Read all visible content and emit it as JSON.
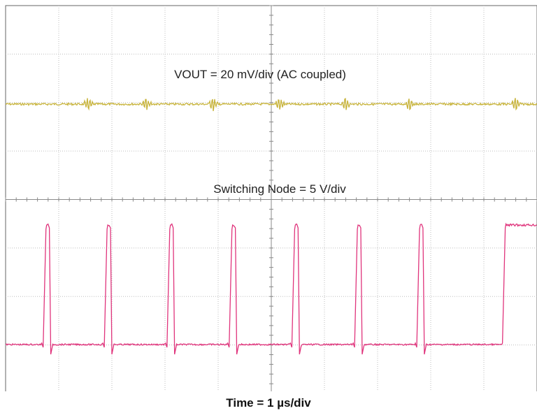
{
  "chart_data": {
    "type": "line",
    "title": "",
    "xlabel": "Time = 1 µs/div",
    "ylabel": "",
    "grid": true,
    "time_per_div_us": 1,
    "x_divisions": 10,
    "y_divisions": 8,
    "switching_period_us": 1.15,
    "series": [
      {
        "name": "VOUT = 20 mV/div (AC coupled)",
        "color": "#c8b43c",
        "scale": "20 mV/div",
        "coupling": "AC",
        "spike_times_us": [
          1.55,
          2.65,
          3.9,
          5.15,
          6.4,
          7.6,
          9.6
        ]
      },
      {
        "name": "Switching Node = 5 V/div",
        "color": "#e0347c",
        "scale": "5 V/div",
        "pulse_start_us": [
          0.72,
          1.87,
          3.05,
          4.22,
          5.4,
          6.58,
          7.75
        ],
        "pulse_width_us": 0.13
      }
    ]
  }
}
